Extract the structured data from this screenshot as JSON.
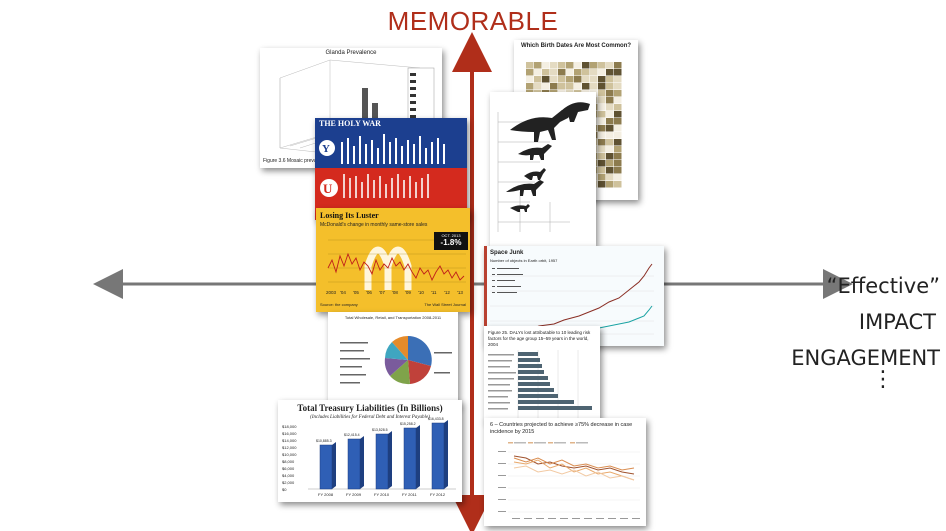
{
  "header": {
    "title": "MEMORABLE"
  },
  "axis": {
    "right_label": "“Effective”",
    "impact": "IMPACT",
    "engagement": "ENGAGEMENT",
    "ellipsis": "⋮"
  },
  "figures": {
    "glanda": {
      "title": "Glanda Prevalence",
      "caption": "Figure 3.6 Mosaic prevalence"
    },
    "holywar": {
      "title": "THE HOLY WAR"
    },
    "mcd": {
      "title": "Losing Its Luster",
      "subtitle": "McDonald's change in monthly same-store sales",
      "badge_date": "OCT. 2013",
      "badge_value": "-1.8%",
      "footer_left": "Source: the company",
      "footer_right": "The Wall Street Journal",
      "years": [
        "2003",
        "'04",
        "'05",
        "'06",
        "'07",
        "'08",
        "'09",
        "'10",
        "'11",
        "'12",
        "'13"
      ]
    },
    "pie": {
      "title": "Total Wholesale, Retail, and Transportation 2008-2011"
    },
    "treasury": {
      "title": "Total Treasury Liabilities (In Billions)",
      "subtitle": "(Includes Liabilities for Federal Debt and Interest Payable)",
      "years": [
        "FY 2008",
        "FY 2009",
        "FY 2010",
        "FY 2011",
        "FY 2012"
      ],
      "values": [
        "$10,885.3",
        "$12,415.4",
        "$13,528.5",
        "$15,258.2",
        "$16,433.8"
      ],
      "yticks": [
        "$18,000",
        "$16,000",
        "$14,000",
        "$12,000",
        "$10,000",
        "$8,000",
        "$6,000",
        "$4,000",
        "$2,000",
        "$0"
      ]
    },
    "births": {
      "title": "Which Birth Dates Are Most Common?"
    },
    "space": {
      "title": "Space Junk",
      "subtitle": "Number of objects in Earth orbit, 1957"
    },
    "daly": {
      "title": "Figure 25. DALYs lost attributable to 10 leading risk factors for the age group 15–59 years in the world, 2004"
    },
    "malaria": {
      "title": "6 – Countries projected to achieve ≥75% decrease in case incidence by 2015"
    }
  }
}
